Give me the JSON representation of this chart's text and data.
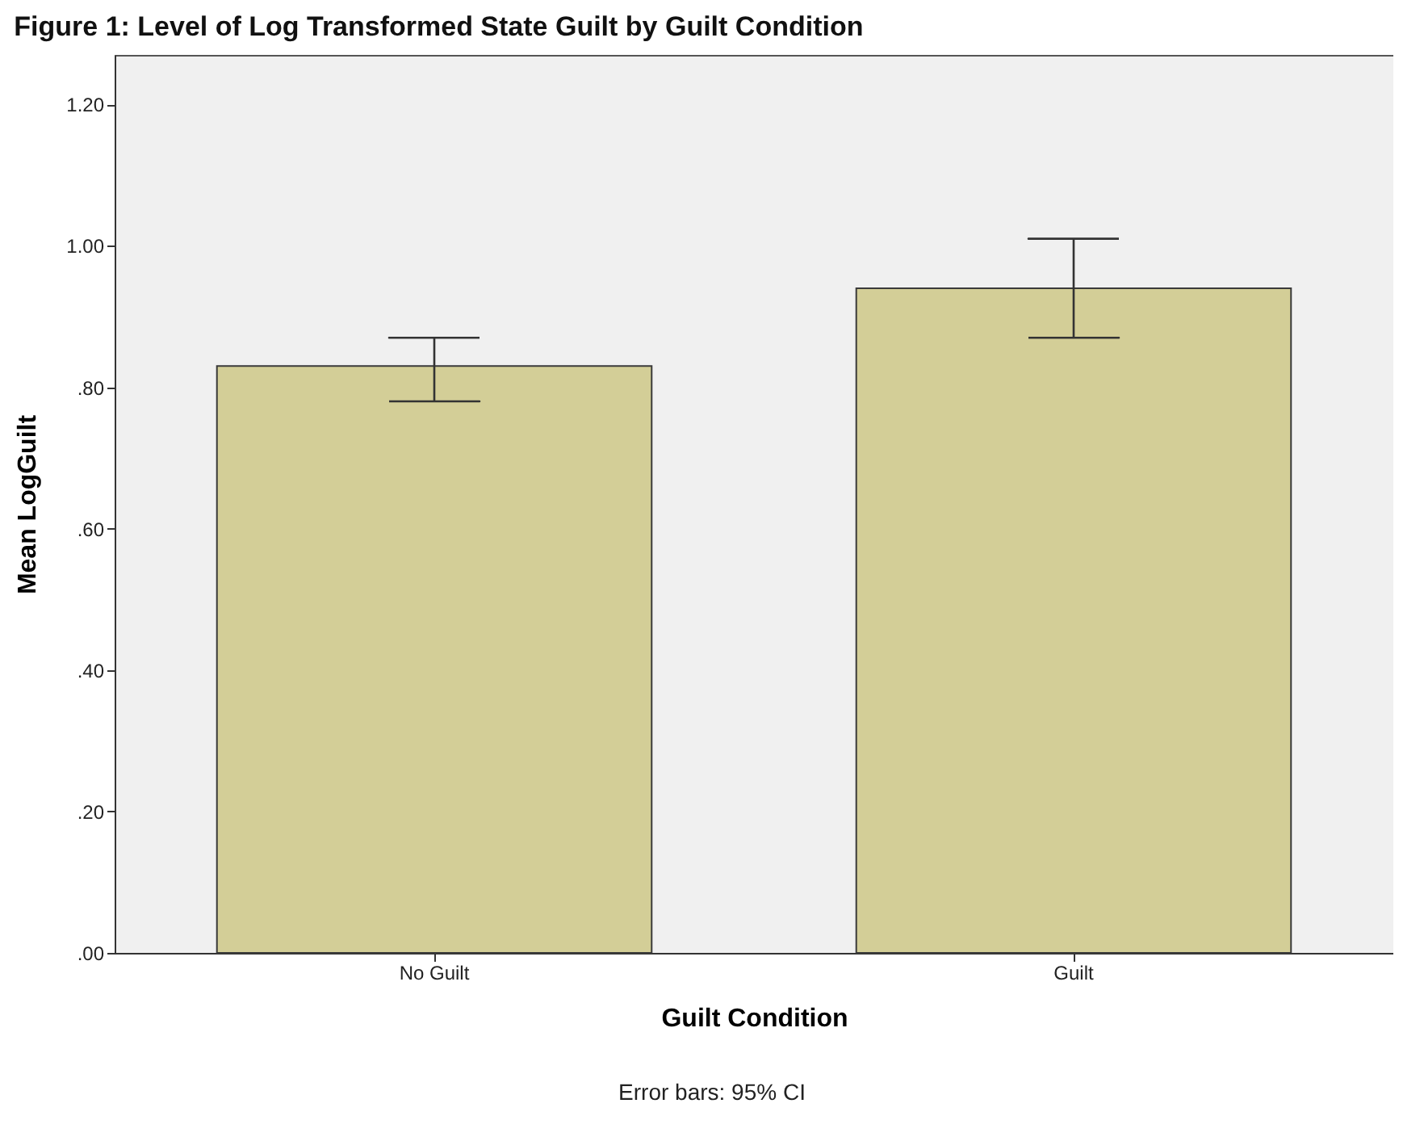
{
  "chart_data": {
    "type": "bar",
    "title": "Figure 1: Level of Log Transformed State Guilt by Guilt Condition",
    "xlabel": "Guilt Condition",
    "ylabel": "Mean LogGuilt",
    "categories": [
      "No Guilt",
      "Guilt"
    ],
    "values": [
      0.83,
      0.94
    ],
    "errors": [
      [
        0.78,
        0.87
      ],
      [
        0.87,
        1.01
      ]
    ],
    "color": "#d3ce97",
    "ylim": [
      0,
      1.27
    ],
    "yticks": [
      {
        "value": 0,
        "label": ".00"
      },
      {
        "value": 0.2,
        "label": ".20"
      },
      {
        "value": 0.4,
        "label": ".40"
      },
      {
        "value": 0.6,
        "label": ".60"
      },
      {
        "value": 0.8,
        "label": ".80"
      },
      {
        "value": 1.0,
        "label": "1.00"
      },
      {
        "value": 1.2,
        "label": "1.20"
      }
    ],
    "grid": false,
    "annotations": [
      "Error bars: 95% CI"
    ]
  }
}
